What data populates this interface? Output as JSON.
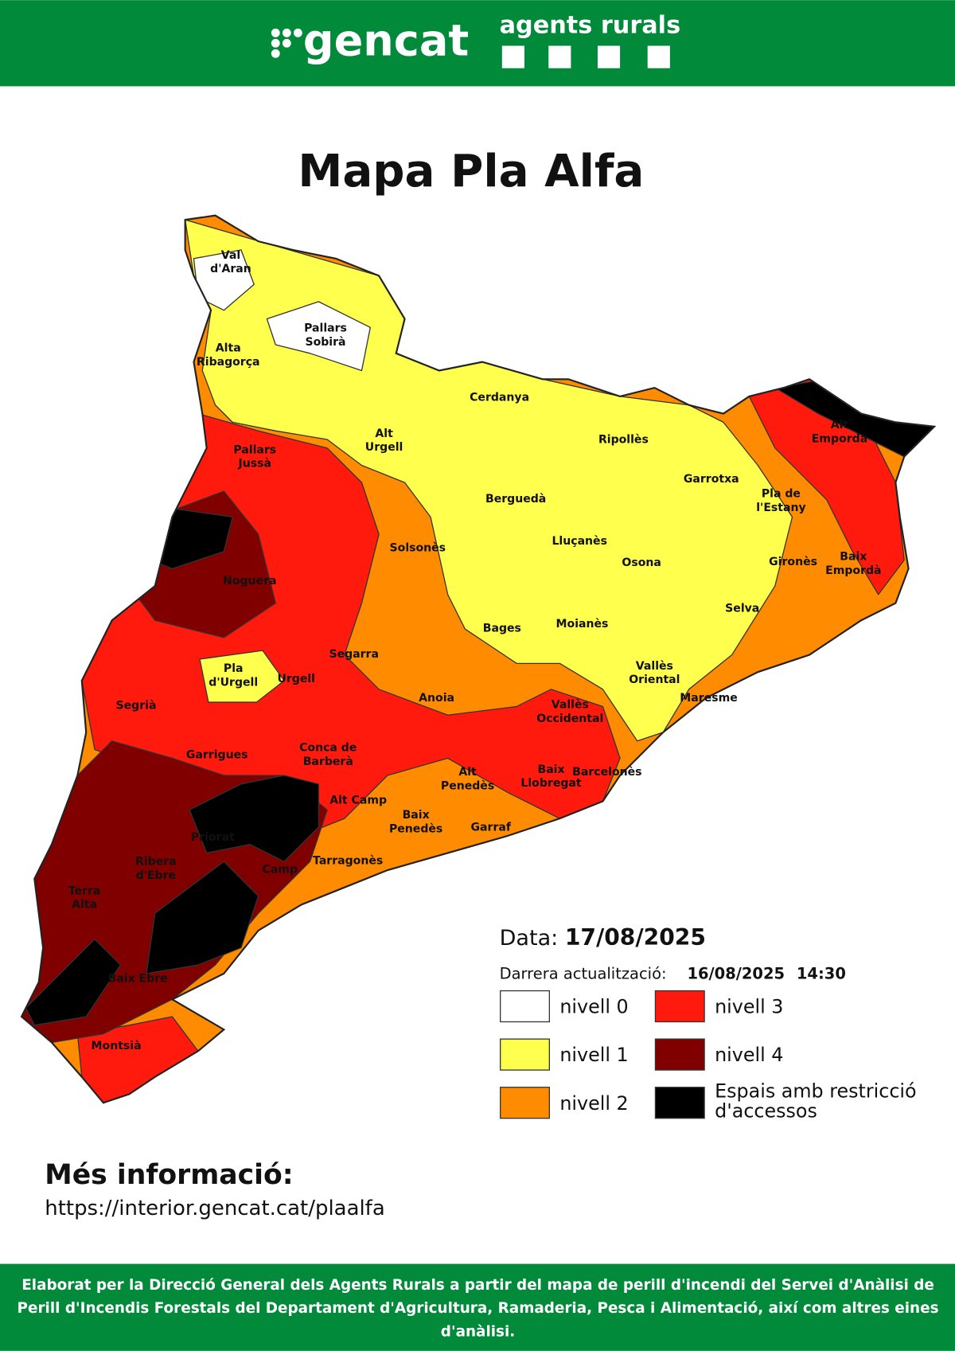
{
  "header": {
    "logo": "gencat",
    "brand": "agents rurals"
  },
  "title": "Mapa Pla Alfa",
  "map": {
    "regions": [
      [
        "Val",
        "d'Aran"
      ],
      [
        "Pallars",
        "Sobirà"
      ],
      [
        "Alta",
        "Ribagorça"
      ],
      [
        "Cerdanya"
      ],
      [
        "Alt",
        "Urgell"
      ],
      [
        "Ripollès"
      ],
      [
        "Alt",
        "Empordà"
      ],
      [
        "Pallars",
        "Jussà"
      ],
      [
        "Garrotxa"
      ],
      [
        "Pla de",
        "l'Estany"
      ],
      [
        "Berguedà"
      ],
      [
        "Solsonès"
      ],
      [
        "Lluçanès"
      ],
      [
        "Osona"
      ],
      [
        "Gironès"
      ],
      [
        "Baix",
        "Empordà"
      ],
      [
        "Noguera"
      ],
      [
        "Selva"
      ],
      [
        "Bages"
      ],
      [
        "Moianès"
      ],
      [
        "Segarra"
      ],
      [
        "Pla",
        "d'Urgell"
      ],
      [
        "Urgell"
      ],
      [
        "Vallès",
        "Oriental"
      ],
      [
        "Maresme"
      ],
      [
        "Segrià"
      ],
      [
        "Anoia"
      ],
      [
        "Vallès",
        "Occidental"
      ],
      [
        "Conca de",
        "Barberà"
      ],
      [
        "Garrigues"
      ],
      [
        "Alt",
        "Penedès"
      ],
      [
        "Baix",
        "Llobregat"
      ],
      [
        "Barcelonès"
      ],
      [
        "Alt Camp"
      ],
      [
        "Baix",
        "Penedès"
      ],
      [
        "Garraf"
      ],
      [
        "Priorat"
      ],
      [
        "Tarragonès"
      ],
      [
        "Camp"
      ],
      [
        "Ribera",
        "d'Ebre"
      ],
      [
        "Terra",
        "Alta"
      ],
      [
        "Baix Ebre"
      ],
      [
        "Montsià"
      ]
    ]
  },
  "legend": {
    "date_label": "Data:",
    "date": "17/08/2025",
    "update_label": "Darrera actualització:",
    "update_date": "16/08/2025",
    "update_time": "14:30",
    "items": [
      {
        "label": "nivell 0",
        "color": "#ffffff"
      },
      {
        "label": "nivell 1",
        "color": "#ffff4d"
      },
      {
        "label": "nivell 2",
        "color": "#ff8c00"
      },
      {
        "label": "nivell 3",
        "color": "#ff1a0d"
      },
      {
        "label": "nivell 4",
        "color": "#800000"
      },
      {
        "label": [
          "Espais amb restricció",
          "d'accessos"
        ],
        "color": "#000000"
      }
    ]
  },
  "more_info": {
    "title": "Més informació:",
    "url": "https://interior.gencat.cat/plaalfa"
  },
  "footer": [
    "Elaborat per la Direcció General dels Agents Rurals a partir del mapa de perill d'incendi del Servei d'Anàlisi de",
    "Perill d'Incendis Forestals del Departament d'Agricultura, Ramaderia, Pesca i Alimentació, així com altres eines",
    "d'anàlisi."
  ]
}
